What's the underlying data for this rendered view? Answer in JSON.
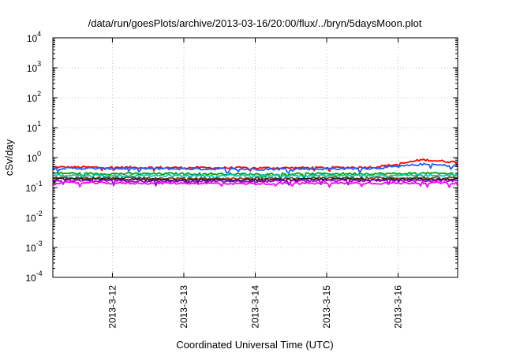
{
  "chart_data": {
    "type": "line",
    "title": "/data/run/goesPlots/archive/2013-03-16/20:00/flux/../bryn/5daysMoon.plot",
    "xlabel": "Coordinated Universal Time (UTC)",
    "ylabel": "cSv/day",
    "yscale": "log",
    "ylim": [
      0.0001,
      10000
    ],
    "xlim_days": [
      "2013-03-11 04:00",
      "2013-03-16 20:00"
    ],
    "x_tick_labels": [
      "2013-3-12",
      "2013-3-13",
      "2013-3-14",
      "2013-3-15",
      "2013-3-16"
    ],
    "y_tick_labels": [
      {
        "base": "10",
        "exp": "-4"
      },
      {
        "base": "10",
        "exp": "-3"
      },
      {
        "base": "10",
        "exp": "-2"
      },
      {
        "base": "10",
        "exp": "-1"
      },
      {
        "base": "10",
        "exp": "0"
      },
      {
        "base": "10",
        "exp": "1"
      },
      {
        "base": "10",
        "exp": "2"
      },
      {
        "base": "10",
        "exp": "3"
      },
      {
        "base": "10",
        "exp": "4"
      }
    ],
    "grid": true,
    "x": [
      "2013-03-11 04:00",
      "2013-03-12 00:00",
      "2013-03-13 00:00",
      "2013-03-14 00:00",
      "2013-03-15 00:00",
      "2013-03-15 16:00",
      "2013-03-16 00:00",
      "2013-03-16 08:00",
      "2013-03-16 20:00"
    ],
    "series": [
      {
        "color": "#ff0000",
        "values": [
          0.48,
          0.47,
          0.46,
          0.45,
          0.46,
          0.48,
          0.6,
          0.85,
          0.7
        ]
      },
      {
        "color": "#1f5fff",
        "values": [
          0.44,
          0.43,
          0.42,
          0.41,
          0.42,
          0.44,
          0.5,
          0.6,
          0.52
        ]
      },
      {
        "color": "#00a000",
        "values": [
          0.3,
          0.29,
          0.29,
          0.28,
          0.29,
          0.29,
          0.29,
          0.3,
          0.29
        ]
      },
      {
        "color": "#00c8c8",
        "values": [
          0.26,
          0.25,
          0.25,
          0.25,
          0.25,
          0.25,
          0.26,
          0.26,
          0.26
        ]
      },
      {
        "color": "#8b4513",
        "values": [
          0.21,
          0.21,
          0.2,
          0.2,
          0.21,
          0.21,
          0.21,
          0.21,
          0.21
        ]
      },
      {
        "color": "#202020",
        "values": [
          0.19,
          0.19,
          0.18,
          0.18,
          0.19,
          0.19,
          0.19,
          0.19,
          0.19
        ]
      },
      {
        "color": "#9400d3",
        "values": [
          0.17,
          0.17,
          0.16,
          0.16,
          0.17,
          0.17,
          0.17,
          0.17,
          0.17
        ]
      },
      {
        "color": "#ff00ff",
        "values": [
          0.145,
          0.14,
          0.14,
          0.135,
          0.14,
          0.14,
          0.14,
          0.145,
          0.14
        ]
      }
    ]
  }
}
